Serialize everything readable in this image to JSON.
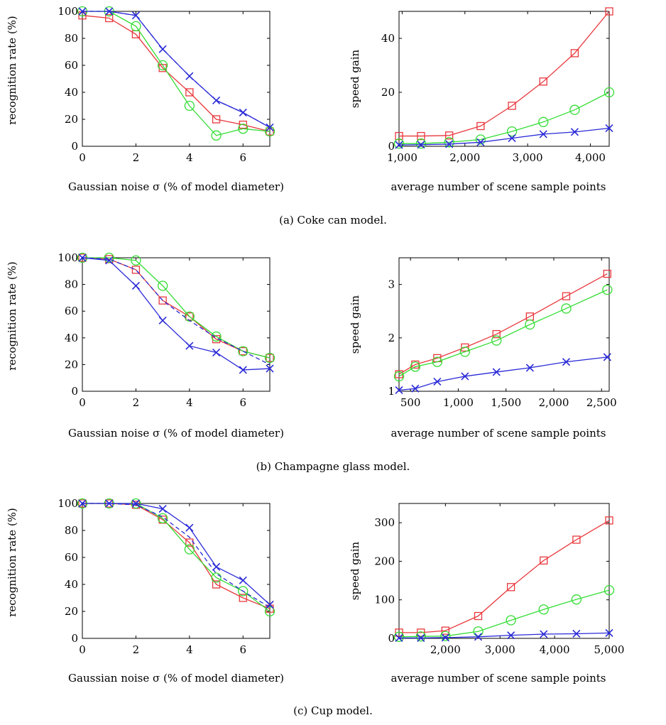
{
  "captions": [
    "(a) Coke can model.",
    "(b) Champagne glass model.",
    "(c) Cup model."
  ],
  "chart_data": [
    {
      "type": "line",
      "xlabel": "Gaussian noise σ (% of model diameter)",
      "ylabel": "recognition rate (%)",
      "xlim": [
        0,
        7
      ],
      "ylim": [
        0,
        100
      ],
      "xticks": [
        0,
        2,
        4,
        6
      ],
      "xtick_labels": [
        "0",
        "2",
        "4",
        "6"
      ],
      "yticks": [
        0,
        20,
        40,
        60,
        80,
        100
      ],
      "ytick_labels": [
        "0",
        "20",
        "40",
        "60",
        "80",
        "100"
      ],
      "grid": false,
      "series": [
        {
          "x": [
            0,
            1,
            2,
            3,
            4,
            5,
            6,
            7
          ],
          "y": [
            97,
            95,
            83,
            58,
            40,
            20,
            16,
            11
          ],
          "color": "#e8383d",
          "marker": "square",
          "dash": false
        },
        {
          "x": [
            0,
            1,
            2,
            3,
            4,
            5,
            6,
            7
          ],
          "y": [
            100,
            100,
            89,
            60,
            30,
            8,
            13,
            11
          ],
          "color": "#33dd33",
          "marker": "circle",
          "dash": false
        },
        {
          "x": [
            0,
            1,
            2,
            3,
            4,
            5,
            6,
            7
          ],
          "y": [
            100,
            100,
            97,
            72,
            52,
            34,
            25,
            14
          ],
          "color": "#2a2ad8",
          "marker": "x",
          "dash": true
        },
        {
          "x": [
            0,
            1,
            2,
            3,
            4,
            5,
            6,
            7
          ],
          "y": [
            100,
            100,
            97,
            72,
            52,
            34,
            25,
            14
          ],
          "color": "#2a2ad8",
          "marker": "x",
          "dash": false
        }
      ]
    },
    {
      "type": "line",
      "xlabel": "average number of scene sample points",
      "ylabel": "speed gain",
      "xlim": [
        950,
        4300
      ],
      "ylim": [
        0,
        50
      ],
      "xticks": [
        1000,
        2000,
        3000,
        4000
      ],
      "xtick_labels": [
        "1,000",
        "2,000",
        "3,000",
        "4,000"
      ],
      "yticks": [
        0,
        20,
        40
      ],
      "ytick_labels": [
        "0",
        "20",
        "40"
      ],
      "grid": false,
      "series": [
        {
          "x": [
            950,
            1300,
            1750,
            2250,
            2750,
            3250,
            3750,
            4300
          ],
          "y": [
            3.8,
            3.8,
            4,
            7.5,
            15,
            24,
            34.5,
            50
          ],
          "color": "#e8383d",
          "marker": "square",
          "dash": false
        },
        {
          "x": [
            950,
            1300,
            1750,
            2250,
            2750,
            3250,
            3750,
            4300
          ],
          "y": [
            1,
            1,
            1.5,
            2.5,
            5.5,
            9,
            13.5,
            20
          ],
          "color": "#33dd33",
          "marker": "circle",
          "dash": false
        },
        {
          "x": [
            950,
            1300,
            1750,
            2250,
            2750,
            3250,
            3750,
            4300
          ],
          "y": [
            0.5,
            0.6,
            0.8,
            1.5,
            3,
            4.5,
            5.3,
            6.7
          ],
          "color": "#2a2ad8",
          "marker": "x",
          "dash": false
        }
      ]
    },
    {
      "type": "line",
      "xlabel": "Gaussian noise σ (% of model diameter)",
      "ylabel": "recognition rate (%)",
      "xlim": [
        0,
        7
      ],
      "ylim": [
        0,
        100
      ],
      "xticks": [
        0,
        2,
        4,
        6
      ],
      "xtick_labels": [
        "0",
        "2",
        "4",
        "6"
      ],
      "yticks": [
        0,
        20,
        40,
        60,
        80,
        100
      ],
      "ytick_labels": [
        "0",
        "20",
        "40",
        "60",
        "80",
        "100"
      ],
      "grid": false,
      "series": [
        {
          "x": [
            0,
            1,
            2,
            3,
            4,
            5,
            6,
            7
          ],
          "y": [
            100,
            99,
            91,
            68,
            56,
            39,
            30,
            25
          ],
          "color": "#e8383d",
          "marker": "square",
          "dash": false
        },
        {
          "x": [
            0,
            1,
            2,
            3,
            4,
            5,
            6,
            7
          ],
          "y": [
            100,
            100,
            98,
            79,
            56,
            41,
            30,
            25
          ],
          "color": "#33dd33",
          "marker": "circle",
          "dash": false
        },
        {
          "x": [
            0,
            1,
            2,
            3,
            4,
            5,
            6,
            7
          ],
          "y": [
            100,
            99,
            91,
            68,
            53,
            40,
            30,
            20
          ],
          "color": "#2a2ad8",
          "marker": "x",
          "dash": true
        },
        {
          "x": [
            0,
            1,
            2,
            3,
            4,
            5,
            6,
            7
          ],
          "y": [
            100,
            98,
            79,
            53,
            34,
            29,
            16,
            17
          ],
          "color": "#2a2ad8",
          "marker": "x",
          "dash": false
        }
      ]
    },
    {
      "type": "line",
      "xlabel": "average number of scene sample points",
      "ylabel": "speed gain",
      "xlim": [
        380,
        2580
      ],
      "ylim": [
        1,
        3.5
      ],
      "xticks": [
        500,
        1000,
        1500,
        2000,
        2500
      ],
      "xtick_labels": [
        "500",
        "1,000",
        "1,500",
        "2,000",
        "2,500"
      ],
      "yticks": [
        1,
        2,
        3
      ],
      "ytick_labels": [
        "1",
        "2",
        "3"
      ],
      "grid": false,
      "series": [
        {
          "x": [
            380,
            550,
            780,
            1070,
            1400,
            1750,
            2130,
            2560
          ],
          "y": [
            1.32,
            1.5,
            1.62,
            1.82,
            2.07,
            2.4,
            2.78,
            3.2
          ],
          "color": "#e8383d",
          "marker": "square",
          "dash": false
        },
        {
          "x": [
            380,
            550,
            780,
            1070,
            1400,
            1750,
            2130,
            2560
          ],
          "y": [
            1.28,
            1.46,
            1.55,
            1.74,
            1.95,
            2.25,
            2.55,
            2.9
          ],
          "color": "#33dd33",
          "marker": "circle",
          "dash": false
        },
        {
          "x": [
            380,
            550,
            780,
            1070,
            1400,
            1750,
            2130,
            2560
          ],
          "y": [
            1.02,
            1.05,
            1.18,
            1.28,
            1.36,
            1.44,
            1.55,
            1.64
          ],
          "color": "#2a2ad8",
          "marker": "x",
          "dash": false
        }
      ]
    },
    {
      "type": "line",
      "xlabel": "Gaussian noise σ (% of model diameter)",
      "ylabel": "recognition rate (%)",
      "xlim": [
        0,
        7
      ],
      "ylim": [
        0,
        100
      ],
      "xticks": [
        0,
        2,
        4,
        6
      ],
      "xtick_labels": [
        "0",
        "2",
        "4",
        "6"
      ],
      "yticks": [
        0,
        20,
        40,
        60,
        80,
        100
      ],
      "ytick_labels": [
        "0",
        "20",
        "40",
        "60",
        "80",
        "100"
      ],
      "grid": false,
      "series": [
        {
          "x": [
            0,
            1,
            2,
            3,
            4,
            5,
            6,
            7
          ],
          "y": [
            100,
            100,
            99,
            88,
            71,
            40,
            30,
            22
          ],
          "color": "#e8383d",
          "marker": "square",
          "dash": false
        },
        {
          "x": [
            0,
            1,
            2,
            3,
            4,
            5,
            6,
            7
          ],
          "y": [
            100,
            100,
            100,
            89,
            66,
            45,
            35,
            20
          ],
          "color": "#33dd33",
          "marker": "circle",
          "dash": false
        },
        {
          "x": [
            0,
            1,
            2,
            3,
            4,
            5,
            6,
            7
          ],
          "y": [
            100,
            100,
            99,
            90,
            75,
            48,
            35,
            23
          ],
          "color": "#2a2ad8",
          "marker": "x",
          "dash": true
        },
        {
          "x": [
            0,
            1,
            2,
            3,
            4,
            5,
            6,
            7
          ],
          "y": [
            100,
            100,
            100,
            96,
            82,
            53,
            43,
            25
          ],
          "color": "#2a2ad8",
          "marker": "x",
          "dash": false
        }
      ]
    },
    {
      "type": "line",
      "xlabel": "average number of scene sample points",
      "ylabel": "speed gain",
      "xlim": [
        1150,
        5000
      ],
      "ylim": [
        0,
        350
      ],
      "xticks": [
        2000,
        3000,
        4000,
        5000
      ],
      "xtick_labels": [
        "2,000",
        "3,000",
        "4,000",
        "5,000"
      ],
      "yticks": [
        0,
        100,
        200,
        300
      ],
      "ytick_labels": [
        "0",
        "100",
        "200",
        "300"
      ],
      "grid": false,
      "series": [
        {
          "x": [
            1150,
            1550,
            2000,
            2600,
            3200,
            3800,
            4400,
            5000
          ],
          "y": [
            15,
            15,
            20,
            58,
            133,
            202,
            256,
            306
          ],
          "color": "#e8383d",
          "marker": "square",
          "dash": false
        },
        {
          "x": [
            1150,
            1550,
            2000,
            2600,
            3200,
            3800,
            4400,
            5000
          ],
          "y": [
            4,
            5,
            6,
            18,
            47,
            75,
            101,
            125
          ],
          "color": "#33dd33",
          "marker": "circle",
          "dash": false
        },
        {
          "x": [
            1150,
            1550,
            2000,
            2600,
            3200,
            3800,
            4400,
            5000
          ],
          "y": [
            1,
            1,
            2,
            4,
            8,
            11,
            12,
            14
          ],
          "color": "#2a2ad8",
          "marker": "x",
          "dash": false
        }
      ]
    }
  ]
}
